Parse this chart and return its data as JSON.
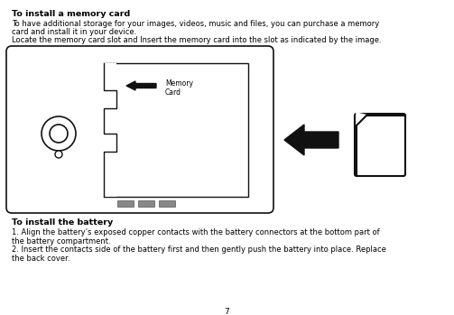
{
  "bg_color": "#ffffff",
  "title1": "To install a memory card",
  "para1_line1": "To have additional storage for your images, videos, music and files, you can purchase a memory",
  "para1_line2": "card and install it in your device.",
  "para1_line3": "Locate the memory card slot and Insert the memory card into the slot as indicated by the image.",
  "title2": "To install the battery",
  "para2_line1": "1. Align the battery’s exposed copper contacts with the battery connectors at the bottom part of",
  "para2_line2": "the battery compartment.",
  "para2_line3": "2. Insert the contacts side of the battery first and then gently push the battery into place. Replace",
  "para2_line4": "the back cover.",
  "page_number": "7",
  "memory_card_label": "Memory\nCard",
  "text_color": "#000000",
  "font_size_title": 6.8,
  "font_size_body": 6.0,
  "font_size_page": 6.5,
  "font_size_card_label": 5.5
}
